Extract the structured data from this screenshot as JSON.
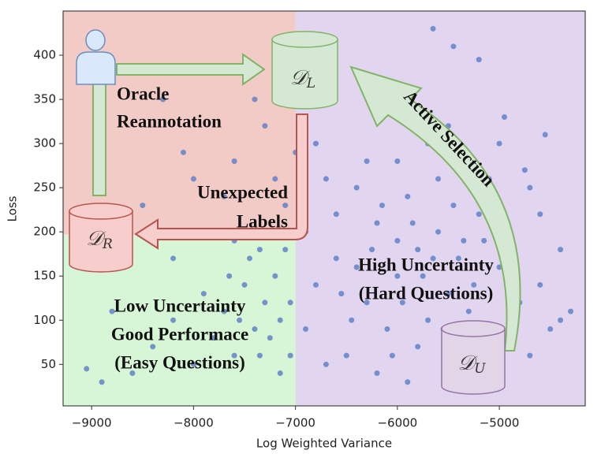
{
  "chart_data": {
    "type": "scatter",
    "xlabel": "Log Weighted Variance",
    "ylabel": "Loss",
    "xlim": [
      -9280,
      -4157
    ],
    "ylim": [
      3,
      450
    ],
    "xticks": [
      {
        "value": -9000,
        "label": "−9000"
      },
      {
        "value": -8000,
        "label": "−8000"
      },
      {
        "value": -7000,
        "label": "−7000"
      },
      {
        "value": -6000,
        "label": "−6000"
      },
      {
        "value": -5000,
        "label": "−5000"
      }
    ],
    "yticks": [
      50,
      100,
      150,
      200,
      250,
      300,
      350,
      400
    ],
    "color": "#5a7cc4",
    "regions": [
      {
        "xlim": [
          -9280,
          -7000
        ],
        "ylim": [
          197,
          450
        ],
        "color": "#f2cbc6"
      },
      {
        "xlim": [
          -9280,
          -7000
        ],
        "ylim": [
          3,
          197
        ],
        "color": "#d6f6d6"
      },
      {
        "xlim": [
          -7000,
          -4157
        ],
        "ylim": [
          3,
          450
        ],
        "color": "#e2d5f0"
      }
    ],
    "x": [
      -5800,
      -5600,
      -6000,
      -5400,
      -6200,
      -5900,
      -5500,
      -6300,
      -5700,
      -5200,
      -6100,
      -5300,
      -6600,
      -6800,
      -6400,
      -5000,
      -4900,
      -5100,
      -5600,
      -6000,
      -5800,
      -6500,
      -6200,
      -5400,
      -4800,
      -4600,
      -4500,
      -4400,
      -4700,
      -5000,
      -5500,
      -6200,
      -6800,
      -6600,
      -6900,
      -6700,
      -5900,
      -5200,
      -4700,
      -4400,
      -4300,
      -4600,
      -5100,
      -5700,
      -6300,
      -6700,
      -6900,
      -5650,
      -5450,
      -5200,
      -6100,
      -4950,
      -4750,
      -4550,
      -6400,
      -6000,
      -5750,
      -5350,
      -5950,
      -6150,
      -5450,
      -5850,
      -6250,
      -5650,
      -5550,
      -6050,
      -5250,
      -6450,
      -6550,
      -5150,
      -7100,
      -7200,
      -7300,
      -7400,
      -7500,
      -7600,
      -7700,
      -7800,
      -7900,
      -8000,
      -8200,
      -8400,
      -8600,
      -8800,
      -8900,
      -9050,
      -7050,
      -7150,
      -7350,
      -7450,
      -7250,
      -7600,
      -7100,
      -7200,
      -7800,
      -7000,
      -7300,
      -7600,
      -8000,
      -8100,
      -8300,
      -7900,
      -7200,
      -8500,
      -7400,
      -7700,
      -8200,
      -8700,
      -7550,
      -7650,
      -7050,
      -7150,
      -7250,
      -7350
    ],
    "values": [
      180,
      200,
      150,
      170,
      210,
      240,
      130,
      120,
      100,
      220,
      90,
      110,
      170,
      140,
      250,
      160,
      200,
      80,
      260,
      280,
      70,
      60,
      40,
      50,
      120,
      140,
      90,
      180,
      250,
      300,
      320,
      330,
      300,
      220,
      90,
      50,
      30,
      35,
      60,
      100,
      110,
      220,
      260,
      300,
      280,
      260,
      200,
      430,
      410,
      395,
      350,
      330,
      270,
      310,
      160,
      190,
      150,
      190,
      120,
      230,
      230,
      210,
      180,
      170,
      90,
      60,
      140,
      100,
      130,
      190,
      180,
      150,
      120,
      90,
      140,
      60,
      110,
      80,
      130,
      50,
      100,
      70,
      40,
      110,
      30,
      45,
      60,
      40,
      180,
      170,
      200,
      190,
      230,
      260,
      200,
      290,
      320,
      280,
      260,
      290,
      350,
      380,
      410,
      230,
      350,
      240,
      170,
      160,
      100,
      150,
      120,
      100,
      80,
      60
    ],
    "annotations": [
      {
        "lines": [
          "Oracle",
          "Reannotation"
        ]
      },
      {
        "lines": [
          "Unexpected",
          "Labels"
        ]
      },
      {
        "lines": [
          "Active Selection"
        ]
      },
      {
        "lines": [
          "High Uncertainty",
          "(Hard Questions)"
        ]
      },
      {
        "lines": [
          "Low Uncertainty",
          "Good Performace",
          "(Easy Questions)"
        ]
      }
    ],
    "stores": [
      {
        "symbol": "𝒟",
        "sub": "L"
      },
      {
        "symbol": "𝒟",
        "sub": "R"
      },
      {
        "symbol": "𝒟",
        "sub": "U"
      }
    ]
  }
}
